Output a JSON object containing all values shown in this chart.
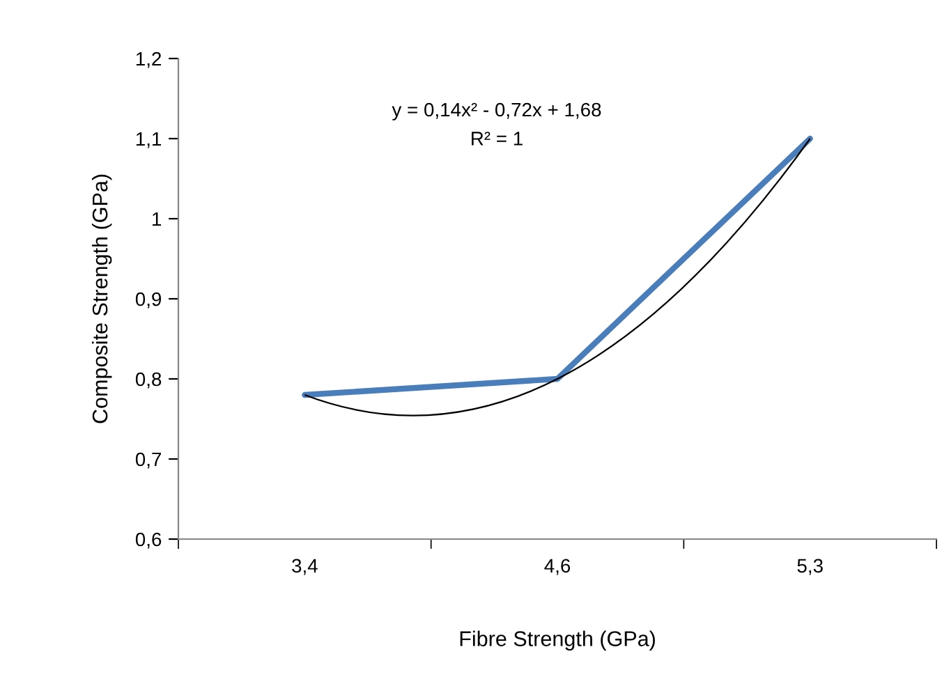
{
  "chart_data": {
    "type": "line",
    "xlabel": "Fibre Strength (GPa)",
    "ylabel": "Composite Strength (GPa)",
    "categories": [
      "3,4",
      "4,6",
      "5,3"
    ],
    "series": [
      {
        "color": "#4a7ebb",
        "values": [
          0.78,
          0.8,
          1.1
        ]
      },
      {
        "color": "#000000",
        "values": [
          0.78,
          0.8,
          1.1
        ]
      }
    ],
    "ylim": [
      0.6,
      1.2
    ],
    "yticks": [
      {
        "value": 0.6,
        "label": "0,6"
      },
      {
        "value": 0.7,
        "label": "0,7"
      },
      {
        "value": 0.8,
        "label": "0,8"
      },
      {
        "value": 0.9,
        "label": "0,9"
      },
      {
        "value": 1,
        "label": "1"
      },
      {
        "value": 1.1,
        "label": "1,1"
      },
      {
        "value": 1.2,
        "label": "1,2"
      }
    ],
    "annotations": [
      "y = 0,14x² - 0,72x + 1,68",
      "R² = 1"
    ],
    "grid": false,
    "legend": false,
    "marker": "none"
  }
}
